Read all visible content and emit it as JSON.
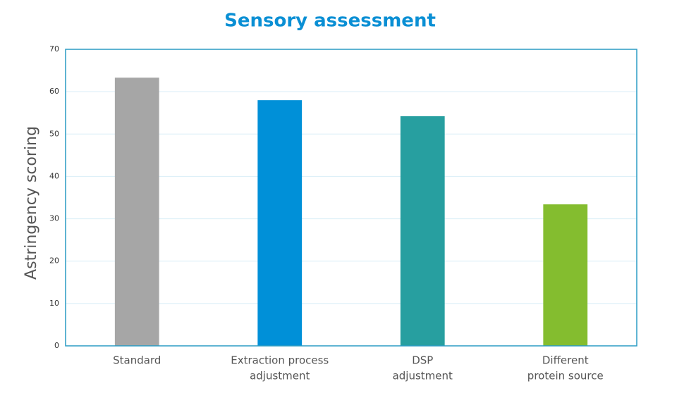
{
  "chart_data": {
    "type": "bar",
    "title": "Sensory assessment",
    "y_label": "Astringency scoring",
    "categories": [
      [
        "Standard"
      ],
      [
        "Extraction process",
        "adjustment"
      ],
      [
        "DSP",
        "adjustment"
      ],
      [
        "Different",
        "protein source"
      ]
    ],
    "values": [
      63.3,
      58.0,
      54.2,
      33.4
    ],
    "colors": [
      "#a6a6a6",
      "#0090d8",
      "#279fa0",
      "#84bd2f"
    ],
    "ylim": [
      0,
      70
    ],
    "yticks": [
      0,
      10,
      20,
      30,
      40,
      50,
      60,
      70
    ],
    "grid": true
  }
}
